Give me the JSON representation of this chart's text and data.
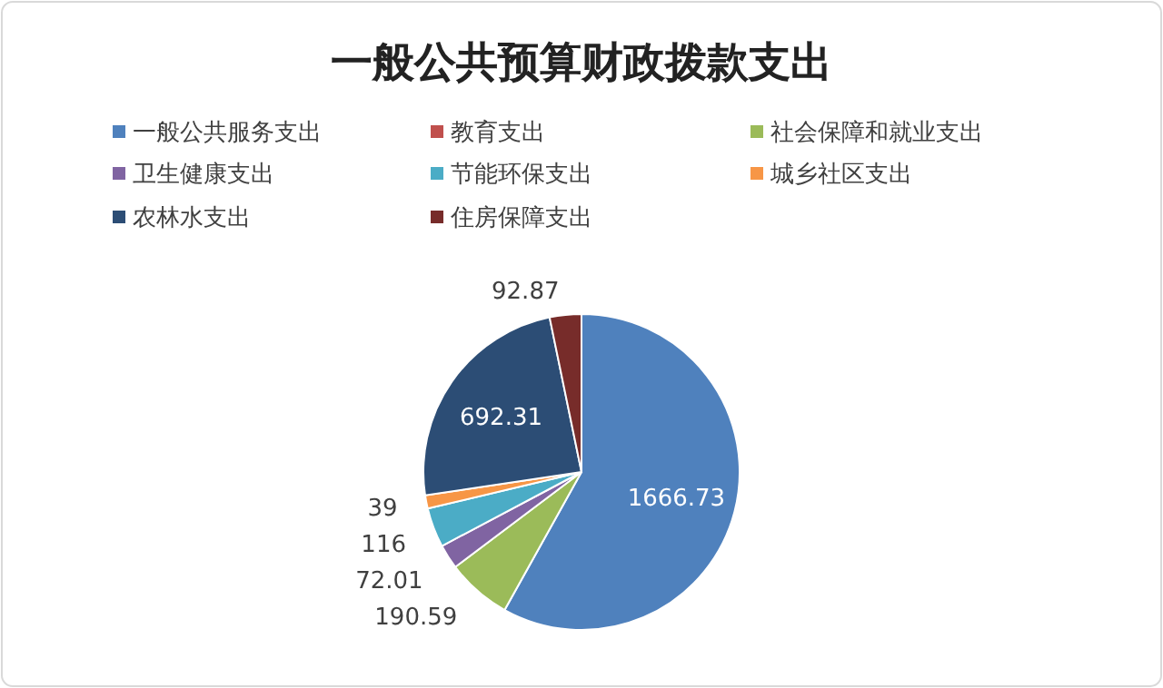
{
  "chart_data": {
    "type": "pie",
    "title": "一般公共预算财政拨款支出",
    "categories": [
      "一般公共服务支出",
      "教育支出",
      "社会保障和就业支出",
      "卫生健康支出",
      "节能环保支出",
      "城乡社区支出",
      "农林水支出",
      "住房保障支出"
    ],
    "values": [
      1666.73,
      0,
      190.59,
      72.01,
      116,
      39,
      692.31,
      92.87
    ],
    "value_labels": [
      "1666.73",
      null,
      "190.59",
      "72.01",
      "116",
      "39",
      "692.31",
      "92.87"
    ],
    "colors": [
      "#4f81bd",
      "#c0504d",
      "#9bbb59",
      "#8064a2",
      "#4bacc6",
      "#f79646",
      "#2c4d75",
      "#772c2a"
    ],
    "legend": "top"
  }
}
